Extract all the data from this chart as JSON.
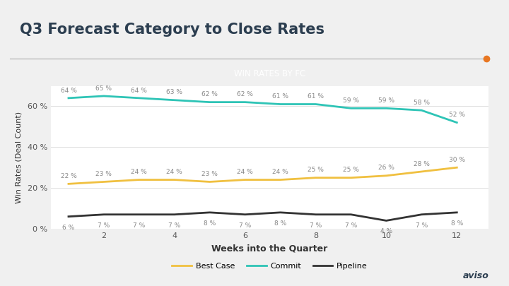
{
  "title": "Q3 Forecast Category to Close Rates",
  "subtitle": "WIN RATES BY FC",
  "xlabel": "Weeks into the Quarter",
  "ylabel": "Win Rates (Deal Count)",
  "weeks": [
    1,
    2,
    3,
    4,
    5,
    6,
    7,
    8,
    9,
    10,
    11,
    12
  ],
  "commit": [
    64,
    65,
    64,
    63,
    62,
    62,
    61,
    61,
    59,
    59,
    58,
    52
  ],
  "best_case": [
    22,
    23,
    24,
    24,
    23,
    24,
    24,
    25,
    25,
    26,
    28,
    30
  ],
  "pipeline": [
    6,
    7,
    7,
    7,
    8,
    7,
    8,
    7,
    7,
    4,
    7,
    8
  ],
  "commit_color": "#2ec4b6",
  "best_case_color": "#f0c040",
  "pipeline_color": "#333333",
  "subtitle_bg_color": "#2ec4b6",
  "subtitle_text_color": "#ffffff",
  "title_color": "#2c3e50",
  "ylim": [
    0,
    70
  ],
  "yticks": [
    0,
    20,
    40,
    60
  ],
  "ytick_labels": [
    "0 %",
    "20 %",
    "40 %",
    "60 %"
  ],
  "xticks": [
    2,
    4,
    6,
    8,
    10,
    12
  ],
  "bg_color": "#f0f0f0",
  "plot_bg_color": "#ffffff",
  "separator_color": "#aaaaaa",
  "orange_dot_color": "#e87722",
  "annotation_color": "#888888",
  "line_width": 2.0
}
